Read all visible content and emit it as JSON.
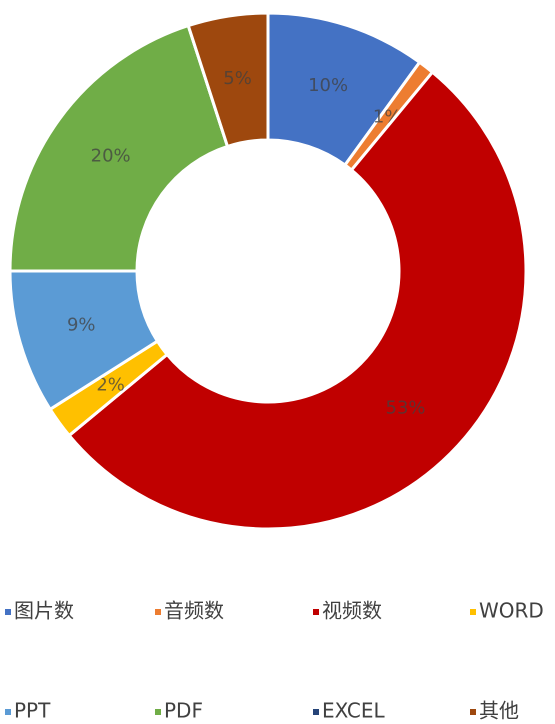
{
  "chart_data": {
    "type": "donut",
    "categories": [
      "图片数",
      "音频数",
      "视频数",
      "WORD",
      "PPT",
      "PDF",
      "EXCEL",
      "其他"
    ],
    "values": [
      10,
      1,
      53,
      2,
      9,
      20,
      0,
      5
    ],
    "value_labels": [
      "10%",
      "1%",
      "53%",
      "2%",
      "9%",
      "20%",
      null,
      "5%"
    ],
    "colors": [
      "#4472c4",
      "#ed7d31",
      "#c00000",
      "#ffc000",
      "#5b9bd5",
      "#70ad47",
      "#264478",
      "#9e480e"
    ],
    "legend": "bottom"
  }
}
